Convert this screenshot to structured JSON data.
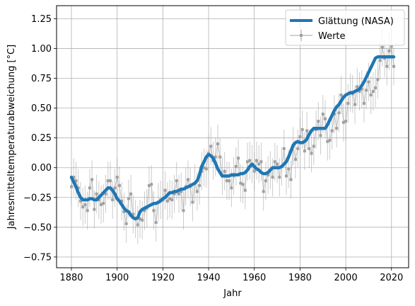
{
  "chart_data": {
    "type": "line",
    "xlabel": "Jahr",
    "ylabel": "Jahresmitteltemperaturabweichung [°C]",
    "xlim": [
      1873.5,
      2027.5
    ],
    "ylim": [
      -0.84,
      1.36
    ],
    "xticks": [
      1880,
      1900,
      1920,
      1940,
      1960,
      1980,
      2000,
      2020
    ],
    "yticks": [
      -0.75,
      -0.5,
      -0.25,
      0.0,
      0.25,
      0.5,
      0.75,
      1.0,
      1.25
    ],
    "xtick_labels": [
      "1880",
      "1900",
      "1920",
      "1940",
      "1960",
      "1980",
      "2000",
      "2020"
    ],
    "ytick_labels": [
      "−0.75",
      "−0.50",
      "−0.25",
      "0.00",
      "0.25",
      "0.50",
      "0.75",
      "1.00",
      "1.25"
    ],
    "grid": true,
    "legend_position": "top-right",
    "legend": [
      "Glättung (NASA)",
      "Werte"
    ],
    "smooth_series": {
      "name": "Glättung (NASA)",
      "color": "#1f77b4",
      "x": [
        1880,
        1881,
        1882,
        1883,
        1884,
        1885,
        1886,
        1887,
        1888,
        1889,
        1890,
        1891,
        1892,
        1893,
        1894,
        1895,
        1896,
        1897,
        1898,
        1899,
        1900,
        1901,
        1902,
        1903,
        1904,
        1905,
        1906,
        1907,
        1908,
        1909,
        1910,
        1911,
        1912,
        1913,
        1914,
        1915,
        1916,
        1917,
        1918,
        1919,
        1920,
        1921,
        1922,
        1923,
        1924,
        1925,
        1926,
        1927,
        1928,
        1929,
        1930,
        1931,
        1932,
        1933,
        1934,
        1935,
        1936,
        1937,
        1938,
        1939,
        1940,
        1941,
        1942,
        1943,
        1944,
        1945,
        1946,
        1947,
        1948,
        1949,
        1950,
        1951,
        1952,
        1953,
        1954,
        1955,
        1956,
        1957,
        1958,
        1959,
        1960,
        1961,
        1962,
        1963,
        1964,
        1965,
        1966,
        1967,
        1968,
        1969,
        1970,
        1971,
        1972,
        1973,
        1974,
        1975,
        1976,
        1977,
        1978,
        1979,
        1980,
        1981,
        1982,
        1983,
        1984,
        1985,
        1986,
        1987,
        1988,
        1989,
        1990,
        1991,
        1992,
        1993,
        1994,
        1995,
        1996,
        1997,
        1998,
        1999,
        2000,
        2001,
        2002,
        2003,
        2004,
        2005,
        2006,
        2007,
        2008,
        2009,
        2010,
        2011,
        2012,
        2013,
        2014,
        2015,
        2016,
        2017,
        2018,
        2019,
        2020,
        2021
      ],
      "values": [
        -0.08,
        -0.12,
        -0.16,
        -0.21,
        -0.25,
        -0.27,
        -0.27,
        -0.27,
        -0.26,
        -0.26,
        -0.27,
        -0.27,
        -0.25,
        -0.23,
        -0.21,
        -0.19,
        -0.17,
        -0.17,
        -0.19,
        -0.22,
        -0.26,
        -0.28,
        -0.31,
        -0.34,
        -0.36,
        -0.37,
        -0.4,
        -0.42,
        -0.43,
        -0.42,
        -0.37,
        -0.35,
        -0.34,
        -0.33,
        -0.32,
        -0.31,
        -0.3,
        -0.3,
        -0.29,
        -0.28,
        -0.26,
        -0.25,
        -0.23,
        -0.21,
        -0.21,
        -0.2,
        -0.2,
        -0.19,
        -0.18,
        -0.18,
        -0.17,
        -0.16,
        -0.15,
        -0.14,
        -0.13,
        -0.11,
        -0.06,
        0.01,
        0.05,
        0.09,
        0.11,
        0.1,
        0.08,
        0.04,
        -0.01,
        -0.04,
        -0.07,
        -0.07,
        -0.07,
        -0.07,
        -0.06,
        -0.06,
        -0.06,
        -0.06,
        -0.05,
        -0.05,
        -0.04,
        -0.02,
        0.01,
        0.03,
        0.01,
        -0.01,
        -0.02,
        -0.04,
        -0.05,
        -0.05,
        -0.04,
        -0.02,
        0.0,
        0.0,
        0.0,
        0.0,
        0.01,
        0.03,
        0.05,
        0.09,
        0.14,
        0.19,
        0.21,
        0.22,
        0.21,
        0.21,
        0.22,
        0.24,
        0.28,
        0.31,
        0.33,
        0.33,
        0.33,
        0.33,
        0.33,
        0.33,
        0.36,
        0.4,
        0.44,
        0.48,
        0.51,
        0.53,
        0.56,
        0.59,
        0.61,
        0.62,
        0.63,
        0.63,
        0.64,
        0.65,
        0.66,
        0.69,
        0.72,
        0.76,
        0.8,
        0.84,
        0.88,
        0.92,
        0.93,
        0.93,
        0.93,
        0.93,
        0.93,
        0.93,
        0.93,
        0.93
      ]
    },
    "values_series": {
      "name": "Werte",
      "color": "#a0a0a0",
      "x": [
        1880,
        1881,
        1882,
        1883,
        1884,
        1885,
        1886,
        1887,
        1888,
        1889,
        1890,
        1891,
        1892,
        1893,
        1894,
        1895,
        1896,
        1897,
        1898,
        1899,
        1900,
        1901,
        1902,
        1903,
        1904,
        1905,
        1906,
        1907,
        1908,
        1909,
        1910,
        1911,
        1912,
        1913,
        1914,
        1915,
        1916,
        1917,
        1918,
        1919,
        1920,
        1921,
        1922,
        1923,
        1924,
        1925,
        1926,
        1927,
        1928,
        1929,
        1930,
        1931,
        1932,
        1933,
        1934,
        1935,
        1936,
        1937,
        1938,
        1939,
        1940,
        1941,
        1942,
        1943,
        1944,
        1945,
        1946,
        1947,
        1948,
        1949,
        1950,
        1951,
        1952,
        1953,
        1954,
        1955,
        1956,
        1957,
        1958,
        1959,
        1960,
        1961,
        1962,
        1963,
        1964,
        1965,
        1966,
        1967,
        1968,
        1969,
        1970,
        1971,
        1972,
        1973,
        1974,
        1975,
        1976,
        1977,
        1978,
        1979,
        1980,
        1981,
        1982,
        1983,
        1984,
        1985,
        1986,
        1987,
        1988,
        1989,
        1990,
        1991,
        1992,
        1993,
        1994,
        1995,
        1996,
        1997,
        1998,
        1999,
        2000,
        2001,
        2002,
        2003,
        2004,
        2005,
        2006,
        2007,
        2008,
        2009,
        2010,
        2011,
        2012,
        2013,
        2014,
        2015,
        2016,
        2017,
        2018,
        2019,
        2020,
        2021
      ],
      "values": [
        -0.16,
        -0.08,
        -0.11,
        -0.17,
        -0.28,
        -0.33,
        -0.31,
        -0.36,
        -0.17,
        -0.1,
        -0.35,
        -0.22,
        -0.27,
        -0.31,
        -0.3,
        -0.22,
        -0.11,
        -0.11,
        -0.27,
        -0.17,
        -0.08,
        -0.15,
        -0.28,
        -0.37,
        -0.47,
        -0.26,
        -0.22,
        -0.39,
        -0.43,
        -0.48,
        -0.43,
        -0.44,
        -0.36,
        -0.34,
        -0.15,
        -0.14,
        -0.36,
        -0.46,
        -0.29,
        -0.27,
        -0.27,
        -0.19,
        -0.28,
        -0.26,
        -0.27,
        -0.22,
        -0.11,
        -0.22,
        -0.2,
        -0.36,
        -0.16,
        -0.1,
        -0.16,
        -0.29,
        -0.13,
        -0.2,
        -0.15,
        -0.03,
        -0.0,
        -0.01,
        0.12,
        0.18,
        0.06,
        0.09,
        0.2,
        0.09,
        -0.07,
        -0.03,
        -0.11,
        -0.11,
        -0.17,
        -0.07,
        0.01,
        0.08,
        -0.13,
        -0.14,
        -0.19,
        0.05,
        0.06,
        0.03,
        -0.03,
        0.06,
        0.03,
        0.05,
        -0.2,
        -0.11,
        -0.06,
        -0.02,
        -0.08,
        0.05,
        0.03,
        -0.08,
        0.01,
        0.16,
        -0.07,
        -0.01,
        -0.1,
        0.18,
        0.07,
        0.16,
        0.26,
        0.32,
        0.14,
        0.31,
        0.16,
        0.12,
        0.18,
        0.32,
        0.39,
        0.27,
        0.45,
        0.41,
        0.22,
        0.23,
        0.31,
        0.45,
        0.33,
        0.46,
        0.61,
        0.38,
        0.39,
        0.54,
        0.63,
        0.62,
        0.53,
        0.68,
        0.64,
        0.66,
        0.54,
        0.65,
        0.72,
        0.61,
        0.64,
        0.67,
        0.74,
        0.9,
        1.01,
        0.92,
        0.85,
        0.98,
        1.02,
        0.85
      ],
      "error": 0.16
    }
  }
}
